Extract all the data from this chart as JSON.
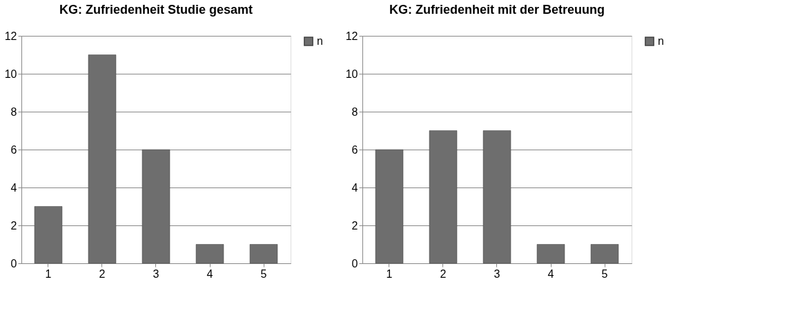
{
  "chart_data": [
    {
      "type": "bar",
      "title": "KG: Zufriedenheit Studie gesamt",
      "categories": [
        "1",
        "2",
        "3",
        "4",
        "5"
      ],
      "series": [
        {
          "name": "n",
          "color": "#6e6e6e",
          "values": [
            3,
            11,
            6,
            1,
            1
          ]
        }
      ],
      "ylim": [
        0,
        12
      ],
      "yticks": [
        0,
        2,
        4,
        6,
        8,
        10,
        12
      ],
      "grid": "y",
      "legend": "right"
    },
    {
      "type": "bar",
      "title": "KG: Zufriedenheit mit der Betreuung",
      "categories": [
        "1",
        "2",
        "3",
        "4",
        "5"
      ],
      "series": [
        {
          "name": "n",
          "color": "#6e6e6e",
          "values": [
            6,
            7,
            7,
            1,
            1
          ]
        }
      ],
      "ylim": [
        0,
        12
      ],
      "yticks": [
        0,
        2,
        4,
        6,
        8,
        10,
        12
      ],
      "grid": "y",
      "legend": "right"
    }
  ]
}
